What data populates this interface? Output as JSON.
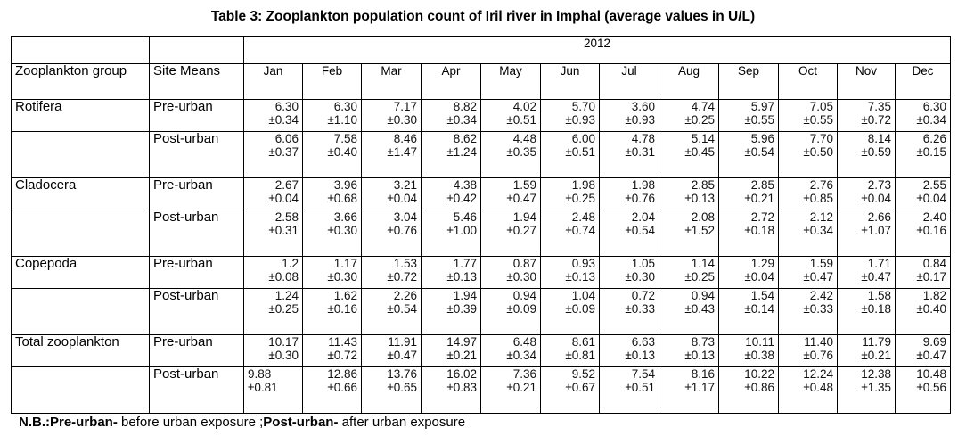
{
  "title_prefix": "Table 3:",
  "title_rest": "Zooplankton population count of Iril river in Imphal (average values in U/L)",
  "year": "2012",
  "header": {
    "group": "Zooplankton group",
    "site": "Site Means"
  },
  "months": [
    "Jan",
    "Feb",
    "Mar",
    "Apr",
    "May",
    "Jun",
    "Jul",
    "Aug",
    "Sep",
    "Oct",
    "Nov",
    "Dec"
  ],
  "groups": [
    {
      "name": "Rotifera",
      "rows": [
        {
          "site": "Pre-urban",
          "mean": [
            "6.30",
            "6.30",
            "7.17",
            "8.82",
            "4.02",
            "5.70",
            "3.60",
            "4.74",
            "5.97",
            "7.05",
            "7.35",
            "6.30"
          ],
          "sd": [
            "±0.34",
            "±1.10",
            "±0.30",
            "±0.34",
            "±0.51",
            "±0.93",
            "±0.93",
            "±0.25",
            "±0.55",
            "±0.55",
            "±0.72",
            "±0.34"
          ]
        },
        {
          "site": "Post-urban",
          "mean": [
            "6.06",
            "7.58",
            "8.46",
            "8.62",
            "4.48",
            "6.00",
            "4.78",
            "5.14",
            "5.96",
            "7.70",
            "8.14",
            "6.26"
          ],
          "sd": [
            "±0.37",
            "±0.40",
            "±1.47",
            "±1.24",
            "±0.35",
            "±0.51",
            "±0.31",
            "±0.45",
            "±0.54",
            "±0.50",
            "±0.59",
            "±0.15"
          ]
        }
      ]
    },
    {
      "name": "Cladocera",
      "rows": [
        {
          "site": "Pre-urban",
          "mean": [
            "2.67",
            "3.96",
            "3.21",
            "4.38",
            "1.59",
            "1.98",
            "1.98",
            "2.85",
            "2.85",
            "2.76",
            "2.73",
            "2.55"
          ],
          "sd": [
            "±0.04",
            "±0.68",
            "±0.04",
            "±0.42",
            "±0.47",
            "±0.25",
            "±0.76",
            "±0.13",
            "±0.21",
            "±0.85",
            "±0.04",
            "±0.04"
          ]
        },
        {
          "site": "Post-urban",
          "mean": [
            "2.58",
            "3.66",
            "3.04",
            "5.46",
            "1.94",
            "2.48",
            "2.04",
            "2.08",
            "2.72",
            "2.12",
            "2.66",
            "2.40"
          ],
          "sd": [
            "±0.31",
            "±0.30",
            "±0.76",
            "±1.00",
            "±0.27",
            "±0.74",
            "±0.54",
            "±1.52",
            "±0.18",
            "±0.34",
            "±1.07",
            "±0.16"
          ]
        }
      ]
    },
    {
      "name": "Copepoda",
      "rows": [
        {
          "site": "Pre-urban",
          "mean": [
            "1.2",
            "1.17",
            "1.53",
            "1.77",
            "0.87",
            "0.93",
            "1.05",
            "1.14",
            "1.29",
            "1.59",
            "1.71",
            "0.84"
          ],
          "sd": [
            "±0.08",
            "±0.30",
            "±0.72",
            "±0.13",
            "±0.30",
            "±0.13",
            "±0.30",
            "±0.25",
            "±0.04",
            "±0.47",
            "±0.47",
            "±0.17"
          ]
        },
        {
          "site": "Post-urban",
          "mean": [
            "1.24",
            "1.62",
            "2.26",
            "1.94",
            "0.94",
            "1.04",
            "0.72",
            "0.94",
            "1.54",
            "2.42",
            "1.58",
            "1.82"
          ],
          "sd": [
            "±0.25",
            "±0.16",
            "±0.54",
            "±0.39",
            "±0.09",
            "±0.09",
            "±0.33",
            "±0.43",
            "±0.14",
            "±0.33",
            "±0.18",
            "±0.40"
          ]
        }
      ]
    },
    {
      "name": "Total zooplankton",
      "rows": [
        {
          "site": "Pre-urban",
          "mean": [
            "10.17",
            "11.43",
            "11.91",
            "14.97",
            "6.48",
            "8.61",
            "6.63",
            "8.73",
            "10.11",
            "11.40",
            "11.79",
            "9.69"
          ],
          "sd": [
            "±0.30",
            "±0.72",
            "±0.47",
            "±0.21",
            "±0.34",
            "±0.81",
            "±0.13",
            "±0.13",
            "±0.38",
            "±0.76",
            "±0.21",
            "±0.47"
          ]
        },
        {
          "site": "Post-urban",
          "mean": [
            "9.88",
            "12.86",
            "13.76",
            "16.02",
            "7.36",
            "9.52",
            "7.54",
            "8.16",
            "10.22",
            "12.24",
            "12.38",
            "10.48"
          ],
          "sd": [
            "±0.81",
            "±0.66",
            "±0.65",
            "±0.83",
            "±0.21",
            "±0.67",
            "±0.51",
            "±1.17",
            "±0.86",
            "±0.48",
            "±1.35",
            "±0.56"
          ]
        }
      ]
    }
  ],
  "note": {
    "label": "N.B.:",
    "pre_term": "Pre-urban-",
    "pre_text": " before urban exposure ;",
    "post_term": "Post-urban-",
    "post_text": " after urban exposure"
  }
}
